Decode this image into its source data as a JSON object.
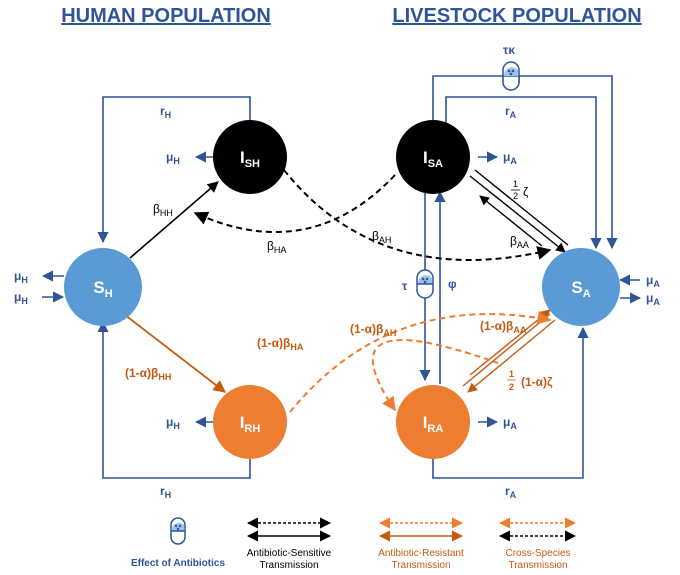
{
  "headers": {
    "human": "HUMAN POPULATION",
    "livestock": "LIVESTOCK POPULATION"
  },
  "nodes": {
    "SH": {
      "main": "S",
      "sub": "H",
      "color": "#5b9bd5"
    },
    "ISH": {
      "main": "I",
      "sub": "SH",
      "color": "#000000"
    },
    "IRH": {
      "main": "I",
      "sub": "RH",
      "color": "#ed7d31"
    },
    "ISA": {
      "main": "I",
      "sub": "SA",
      "color": "#000000"
    },
    "SA": {
      "main": "S",
      "sub": "A",
      "color": "#5b9bd5"
    },
    "IRA": {
      "main": "I",
      "sub": "RA",
      "color": "#ed7d31"
    }
  },
  "labels": {
    "rH_top": {
      "main": "r",
      "sub": "H"
    },
    "rH_bottom": {
      "main": "r",
      "sub": "H"
    },
    "rA_top": {
      "main": "r",
      "sub": "A"
    },
    "rA_bottom": {
      "main": "r",
      "sub": "A"
    },
    "tau_kappa": "τκ",
    "tau": "τ",
    "phi": "φ",
    "mu_H": {
      "main": "μ",
      "sub": "H"
    },
    "mu_A": {
      "main": "μ",
      "sub": "A"
    },
    "beta_HH": {
      "main": "β",
      "sub": "HH"
    },
    "beta_HA": {
      "main": "β",
      "sub": "HA"
    },
    "beta_AH": {
      "main": "β",
      "sub": "AH"
    },
    "beta_AA": {
      "main": "β",
      "sub": "AA"
    },
    "half_zeta": "ζ",
    "half_num": "1",
    "half_den": "2",
    "r_beta_HH": {
      "main": "(1-α)β",
      "sub": "HH"
    },
    "r_beta_HA": {
      "main": "(1-α)β",
      "sub": "HA"
    },
    "r_beta_AH": {
      "main": "(1-α)β",
      "sub": "AH"
    },
    "r_beta_AA": {
      "main": "(1-α)β",
      "sub": "AA"
    },
    "r_zeta": "(1-α)ζ"
  },
  "legend": {
    "antibiotics": "Effect of Antibiotics",
    "sensitive_1": "Antibiotic-Sensitive",
    "sensitive_2": "Transmission",
    "resistant_1": "Antibiotic-Resistant",
    "resistant_2": "Transmission",
    "cross_1": "Cross-Species",
    "cross_2": "Transmission"
  },
  "colors": {
    "blue": "#2f5597",
    "orange": "#c55a11",
    "black": "#000000"
  }
}
